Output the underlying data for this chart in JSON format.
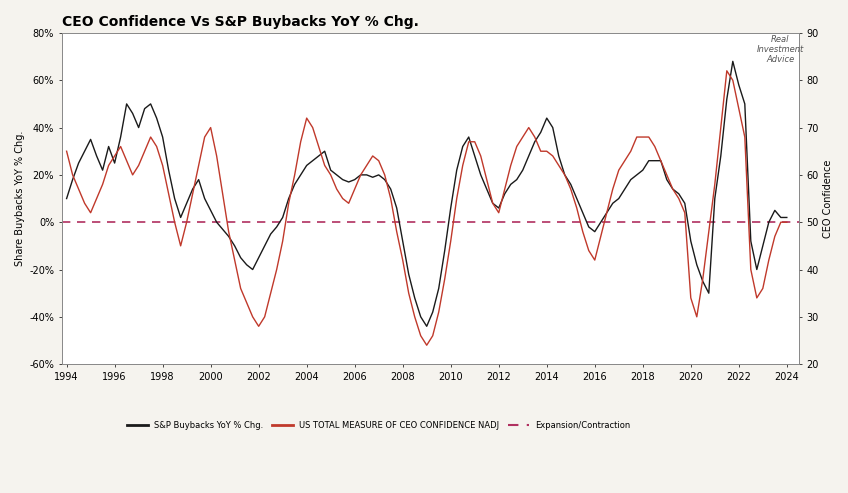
{
  "title": "CEO Confidence Vs S&P Buybacks YoY % Chg.",
  "ylabel_left": "Share Buybacks YoY % Chg.",
  "ylabel_right": "CEO Confidence",
  "ylim_left": [
    -60,
    80
  ],
  "ylim_right": [
    20,
    90
  ],
  "yticks_left": [
    -60,
    -40,
    -20,
    0,
    20,
    40,
    60,
    80
  ],
  "yticks_right": [
    20,
    30,
    40,
    50,
    60,
    70,
    80,
    90
  ],
  "bg_color": "#f5f3ee",
  "plot_bg_color": "#ffffff",
  "line1_color": "#1a1a1a",
  "line2_color": "#c0392b",
  "hline_color": "#b03060",
  "legend_labels": [
    "S&P Buybacks YoY % Chg.",
    "US TOTAL MEASURE OF CEO CONFIDENCE NADJ",
    "Expansion/Contraction"
  ],
  "buybacks_years": [
    1994.0,
    1994.25,
    1994.5,
    1994.75,
    1995.0,
    1995.25,
    1995.5,
    1995.75,
    1996.0,
    1996.25,
    1996.5,
    1996.75,
    1997.0,
    1997.25,
    1997.5,
    1997.75,
    1998.0,
    1998.25,
    1998.5,
    1998.75,
    1999.0,
    1999.25,
    1999.5,
    1999.75,
    2000.0,
    2000.25,
    2000.5,
    2000.75,
    2001.0,
    2001.25,
    2001.5,
    2001.75,
    2002.0,
    2002.25,
    2002.5,
    2002.75,
    2003.0,
    2003.25,
    2003.5,
    2003.75,
    2004.0,
    2004.25,
    2004.5,
    2004.75,
    2005.0,
    2005.25,
    2005.5,
    2005.75,
    2006.0,
    2006.25,
    2006.5,
    2006.75,
    2007.0,
    2007.25,
    2007.5,
    2007.75,
    2008.0,
    2008.25,
    2008.5,
    2008.75,
    2009.0,
    2009.25,
    2009.5,
    2009.75,
    2010.0,
    2010.25,
    2010.5,
    2010.75,
    2011.0,
    2011.25,
    2011.5,
    2011.75,
    2012.0,
    2012.25,
    2012.5,
    2012.75,
    2013.0,
    2013.25,
    2013.5,
    2013.75,
    2014.0,
    2014.25,
    2014.5,
    2014.75,
    2015.0,
    2015.25,
    2015.5,
    2015.75,
    2016.0,
    2016.25,
    2016.5,
    2016.75,
    2017.0,
    2017.25,
    2017.5,
    2017.75,
    2018.0,
    2018.25,
    2018.5,
    2018.75,
    2019.0,
    2019.25,
    2019.5,
    2019.75,
    2020.0,
    2020.25,
    2020.5,
    2020.75,
    2021.0,
    2021.25,
    2021.5,
    2021.75,
    2022.0,
    2022.25,
    2022.5,
    2022.75,
    2023.0,
    2023.25,
    2023.5,
    2023.75,
    2024.0
  ],
  "buybacks_vals": [
    10,
    18,
    25,
    30,
    35,
    28,
    22,
    32,
    25,
    36,
    50,
    46,
    40,
    48,
    50,
    44,
    36,
    22,
    10,
    2,
    8,
    14,
    18,
    10,
    5,
    0,
    -3,
    -6,
    -10,
    -15,
    -18,
    -20,
    -15,
    -10,
    -5,
    -2,
    2,
    10,
    16,
    20,
    24,
    26,
    28,
    30,
    22,
    20,
    18,
    17,
    18,
    20,
    20,
    19,
    20,
    18,
    14,
    6,
    -8,
    -22,
    -32,
    -40,
    -44,
    -38,
    -28,
    -12,
    6,
    22,
    32,
    36,
    28,
    20,
    14,
    8,
    6,
    12,
    16,
    18,
    22,
    28,
    34,
    38,
    44,
    40,
    28,
    20,
    16,
    10,
    4,
    -2,
    -4,
    0,
    4,
    8,
    10,
    14,
    18,
    20,
    22,
    26,
    26,
    26,
    18,
    14,
    12,
    8,
    -8,
    -18,
    -25,
    -30,
    10,
    28,
    52,
    68,
    58,
    50,
    -8,
    -20,
    -10,
    0,
    5,
    2,
    2
  ],
  "ceo_years": [
    1994.0,
    1994.25,
    1994.5,
    1994.75,
    1995.0,
    1995.25,
    1995.5,
    1995.75,
    1996.0,
    1996.25,
    1996.5,
    1996.75,
    1997.0,
    1997.25,
    1997.5,
    1997.75,
    1998.0,
    1998.25,
    1998.5,
    1998.75,
    1999.0,
    1999.25,
    1999.5,
    1999.75,
    2000.0,
    2000.25,
    2000.5,
    2000.75,
    2001.0,
    2001.25,
    2001.5,
    2001.75,
    2002.0,
    2002.25,
    2002.5,
    2002.75,
    2003.0,
    2003.25,
    2003.5,
    2003.75,
    2004.0,
    2004.25,
    2004.5,
    2004.75,
    2005.0,
    2005.25,
    2005.5,
    2005.75,
    2006.0,
    2006.25,
    2006.5,
    2006.75,
    2007.0,
    2007.25,
    2007.5,
    2007.75,
    2008.0,
    2008.25,
    2008.5,
    2008.75,
    2009.0,
    2009.25,
    2009.5,
    2009.75,
    2010.0,
    2010.25,
    2010.5,
    2010.75,
    2011.0,
    2011.25,
    2011.5,
    2011.75,
    2012.0,
    2012.25,
    2012.5,
    2012.75,
    2013.0,
    2013.25,
    2013.5,
    2013.75,
    2014.0,
    2014.25,
    2014.5,
    2014.75,
    2015.0,
    2015.25,
    2015.5,
    2015.75,
    2016.0,
    2016.25,
    2016.5,
    2016.75,
    2017.0,
    2017.25,
    2017.5,
    2017.75,
    2018.0,
    2018.25,
    2018.5,
    2018.75,
    2019.0,
    2019.25,
    2019.5,
    2019.75,
    2020.0,
    2020.25,
    2020.5,
    2020.75,
    2021.0,
    2021.25,
    2021.5,
    2021.75,
    2022.0,
    2022.25,
    2022.5,
    2022.75,
    2023.0,
    2023.25,
    2023.5,
    2023.75,
    2024.0
  ],
  "ceo_vals": [
    65,
    60,
    57,
    54,
    52,
    55,
    58,
    62,
    64,
    66,
    63,
    60,
    62,
    65,
    68,
    66,
    62,
    56,
    50,
    45,
    50,
    56,
    62,
    68,
    70,
    64,
    56,
    48,
    42,
    36,
    33,
    30,
    28,
    30,
    35,
    40,
    46,
    54,
    60,
    67,
    72,
    70,
    66,
    62,
    60,
    57,
    55,
    54,
    57,
    60,
    62,
    64,
    63,
    60,
    55,
    48,
    42,
    35,
    30,
    26,
    24,
    26,
    31,
    38,
    46,
    55,
    62,
    67,
    67,
    64,
    59,
    54,
    52,
    57,
    62,
    66,
    68,
    70,
    68,
    65,
    65,
    64,
    62,
    60,
    57,
    53,
    48,
    44,
    42,
    47,
    52,
    57,
    61,
    63,
    65,
    68,
    68,
    68,
    66,
    63,
    60,
    57,
    55,
    52,
    34,
    30,
    38,
    48,
    58,
    70,
    82,
    80,
    74,
    68,
    40,
    34,
    36,
    42,
    47,
    50,
    50
  ]
}
